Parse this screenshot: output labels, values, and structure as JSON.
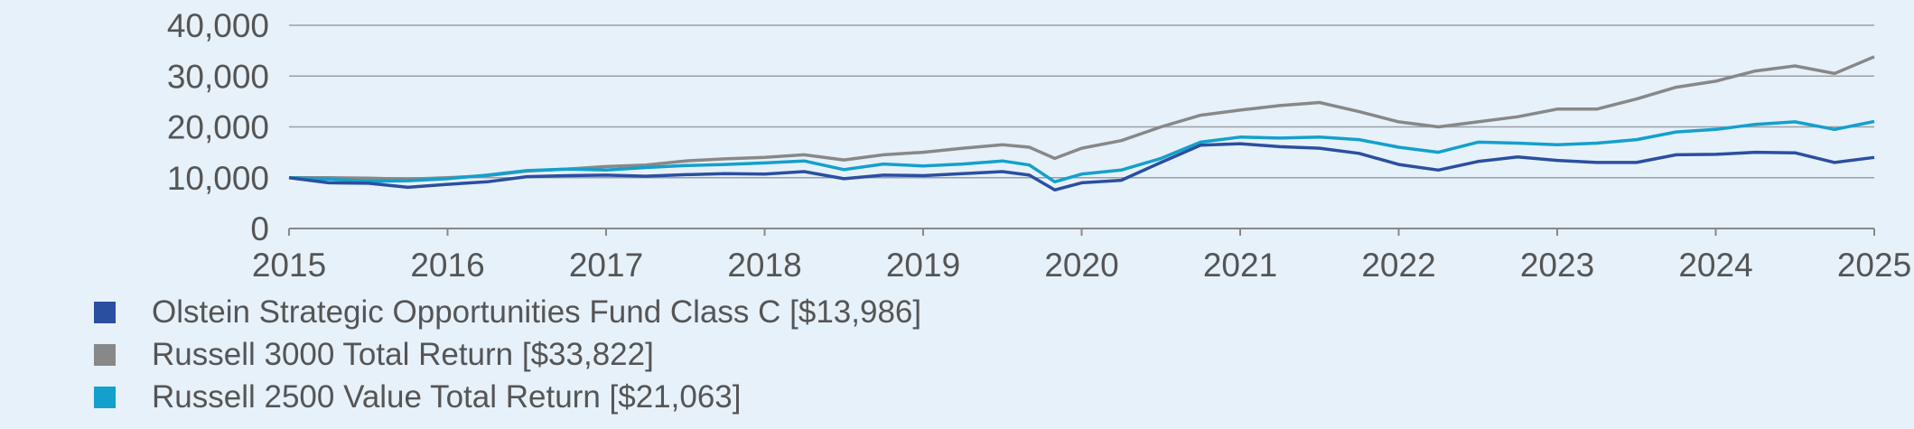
{
  "chart_data": {
    "type": "line",
    "title": "",
    "xlabel": "",
    "ylabel": "",
    "xlim": [
      2015,
      2025
    ],
    "ylim": [
      0,
      40000
    ],
    "x_ticks": [
      "2015",
      "2016",
      "2017",
      "2018",
      "2019",
      "2020",
      "2021",
      "2022",
      "2023",
      "2024",
      "2025"
    ],
    "y_ticks": [
      "0",
      "10,000",
      "20,000",
      "30,000",
      "40,000"
    ],
    "grid": true,
    "legend_position": "bottom-left",
    "series": [
      {
        "name": "Olstein Strategic Opportunities Fund Class C [$13,986]",
        "color": "#2b4fa0",
        "points": [
          [
            2015.0,
            10000
          ],
          [
            2015.25,
            9000
          ],
          [
            2015.5,
            8900
          ],
          [
            2015.75,
            8100
          ],
          [
            2016.0,
            8700
          ],
          [
            2016.25,
            9200
          ],
          [
            2016.5,
            10200
          ],
          [
            2016.75,
            10400
          ],
          [
            2017.0,
            10500
          ],
          [
            2017.25,
            10300
          ],
          [
            2017.5,
            10600
          ],
          [
            2017.75,
            10800
          ],
          [
            2018.0,
            10700
          ],
          [
            2018.25,
            11200
          ],
          [
            2018.5,
            9800
          ],
          [
            2018.75,
            10500
          ],
          [
            2019.0,
            10400
          ],
          [
            2019.25,
            10800
          ],
          [
            2019.5,
            11200
          ],
          [
            2019.67,
            10500
          ],
          [
            2019.83,
            7600
          ],
          [
            2020.0,
            9000
          ],
          [
            2020.25,
            9500
          ],
          [
            2020.5,
            13000
          ],
          [
            2020.75,
            16400
          ],
          [
            2021.0,
            16700
          ],
          [
            2021.25,
            16100
          ],
          [
            2021.5,
            15800
          ],
          [
            2021.75,
            14800
          ],
          [
            2022.0,
            12600
          ],
          [
            2022.25,
            11500
          ],
          [
            2022.5,
            13200
          ],
          [
            2022.75,
            14100
          ],
          [
            2023.0,
            13400
          ],
          [
            2023.25,
            13000
          ],
          [
            2023.5,
            13000
          ],
          [
            2023.75,
            14500
          ],
          [
            2024.0,
            14600
          ],
          [
            2024.25,
            15000
          ],
          [
            2024.5,
            14900
          ],
          [
            2024.75,
            13000
          ],
          [
            2025.0,
            13986
          ]
        ]
      },
      {
        "name": "Russell 3000 Total Return [$33,822]",
        "color": "#888888",
        "points": [
          [
            2015.0,
            10000
          ],
          [
            2015.25,
            10000
          ],
          [
            2015.5,
            9900
          ],
          [
            2015.75,
            9700
          ],
          [
            2016.0,
            10000
          ],
          [
            2016.25,
            10400
          ],
          [
            2016.5,
            11300
          ],
          [
            2016.75,
            11700
          ],
          [
            2017.0,
            12200
          ],
          [
            2017.25,
            12500
          ],
          [
            2017.5,
            13300
          ],
          [
            2017.75,
            13700
          ],
          [
            2018.0,
            14000
          ],
          [
            2018.25,
            14500
          ],
          [
            2018.5,
            13500
          ],
          [
            2018.75,
            14500
          ],
          [
            2019.0,
            15000
          ],
          [
            2019.25,
            15800
          ],
          [
            2019.5,
            16500
          ],
          [
            2019.67,
            16000
          ],
          [
            2019.83,
            13800
          ],
          [
            2020.0,
            15800
          ],
          [
            2020.25,
            17300
          ],
          [
            2020.5,
            20000
          ],
          [
            2020.75,
            22300
          ],
          [
            2021.0,
            23300
          ],
          [
            2021.25,
            24200
          ],
          [
            2021.5,
            24800
          ],
          [
            2021.75,
            23000
          ],
          [
            2022.0,
            21000
          ],
          [
            2022.25,
            20000
          ],
          [
            2022.5,
            21000
          ],
          [
            2022.75,
            22000
          ],
          [
            2023.0,
            23500
          ],
          [
            2023.25,
            23500
          ],
          [
            2023.5,
            25500
          ],
          [
            2023.75,
            27800
          ],
          [
            2024.0,
            29000
          ],
          [
            2024.25,
            31000
          ],
          [
            2024.5,
            32000
          ],
          [
            2024.75,
            30500
          ],
          [
            2025.0,
            33822
          ]
        ]
      },
      {
        "name": "Russell 2500 Value Total Return [$21,063]",
        "color": "#14a0cc",
        "points": [
          [
            2015.0,
            10000
          ],
          [
            2015.25,
            9700
          ],
          [
            2015.5,
            9300
          ],
          [
            2015.75,
            9400
          ],
          [
            2016.0,
            9800
          ],
          [
            2016.25,
            10500
          ],
          [
            2016.5,
            11400
          ],
          [
            2016.75,
            11700
          ],
          [
            2017.0,
            11500
          ],
          [
            2017.25,
            12000
          ],
          [
            2017.5,
            12400
          ],
          [
            2017.75,
            12600
          ],
          [
            2018.0,
            12900
          ],
          [
            2018.25,
            13300
          ],
          [
            2018.5,
            11600
          ],
          [
            2018.75,
            12700
          ],
          [
            2019.0,
            12300
          ],
          [
            2019.25,
            12700
          ],
          [
            2019.5,
            13300
          ],
          [
            2019.67,
            12500
          ],
          [
            2019.83,
            9200
          ],
          [
            2020.0,
            10700
          ],
          [
            2020.25,
            11500
          ],
          [
            2020.5,
            13800
          ],
          [
            2020.75,
            17000
          ],
          [
            2021.0,
            18000
          ],
          [
            2021.25,
            17800
          ],
          [
            2021.5,
            18000
          ],
          [
            2021.75,
            17500
          ],
          [
            2022.0,
            16000
          ],
          [
            2022.25,
            15000
          ],
          [
            2022.5,
            17000
          ],
          [
            2022.75,
            16800
          ],
          [
            2023.0,
            16500
          ],
          [
            2023.25,
            16800
          ],
          [
            2023.5,
            17500
          ],
          [
            2023.75,
            19000
          ],
          [
            2024.0,
            19500
          ],
          [
            2024.25,
            20500
          ],
          [
            2024.5,
            21000
          ],
          [
            2024.75,
            19500
          ],
          [
            2025.0,
            21063
          ]
        ]
      }
    ]
  }
}
